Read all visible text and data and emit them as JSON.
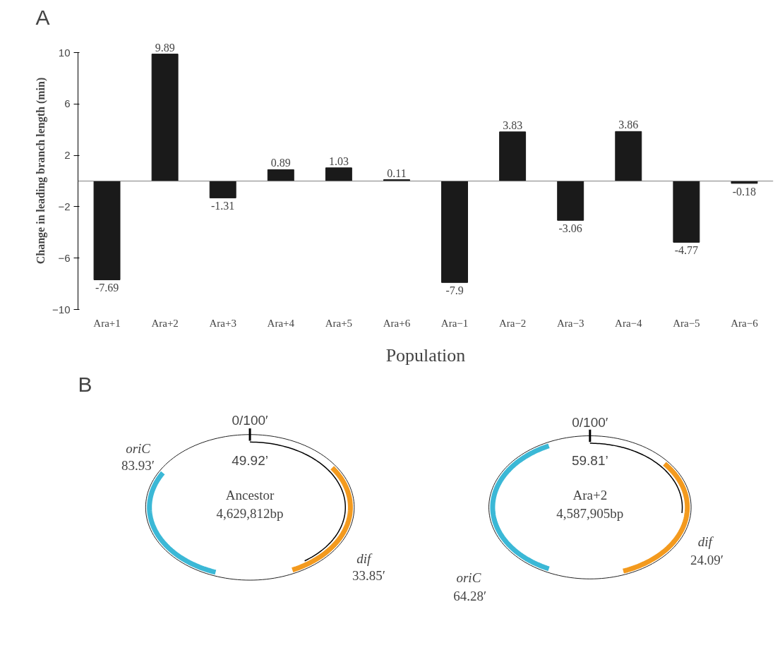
{
  "chart_data": [
    {
      "type": "bar",
      "title": "A",
      "categories": [
        "Ara+1",
        "Ara+2",
        "Ara+3",
        "Ara+4",
        "Ara+5",
        "Ara+6",
        "Ara−1",
        "Ara−2",
        "Ara−3",
        "Ara−4",
        "Ara−5",
        "Ara−6"
      ],
      "values": [
        -7.69,
        9.89,
        -1.31,
        0.89,
        1.03,
        0.11,
        -7.9,
        3.83,
        -3.06,
        3.86,
        -4.77,
        -0.18
      ],
      "color": "#1a1a1a",
      "ylim": [
        -10,
        10
      ],
      "yticks": [
        -10,
        -6,
        -2,
        2,
        6,
        10
      ],
      "xlabel": "Population",
      "ylabel": "Change in leading branch length (min)",
      "data_labels": true,
      "grid": false
    },
    {
      "type": "other",
      "title": "B",
      "annotations": [
        "0/100′",
        "oriC",
        "83.93′",
        "49.92’",
        "Ancestor",
        "4,629,812bp",
        "dif",
        "33.85′",
        "0/100′",
        "59.81’",
        "Ara+2",
        "4,587,905bp",
        "dif",
        "24.09′",
        "oriC",
        "64.28′"
      ]
    }
  ]
}
